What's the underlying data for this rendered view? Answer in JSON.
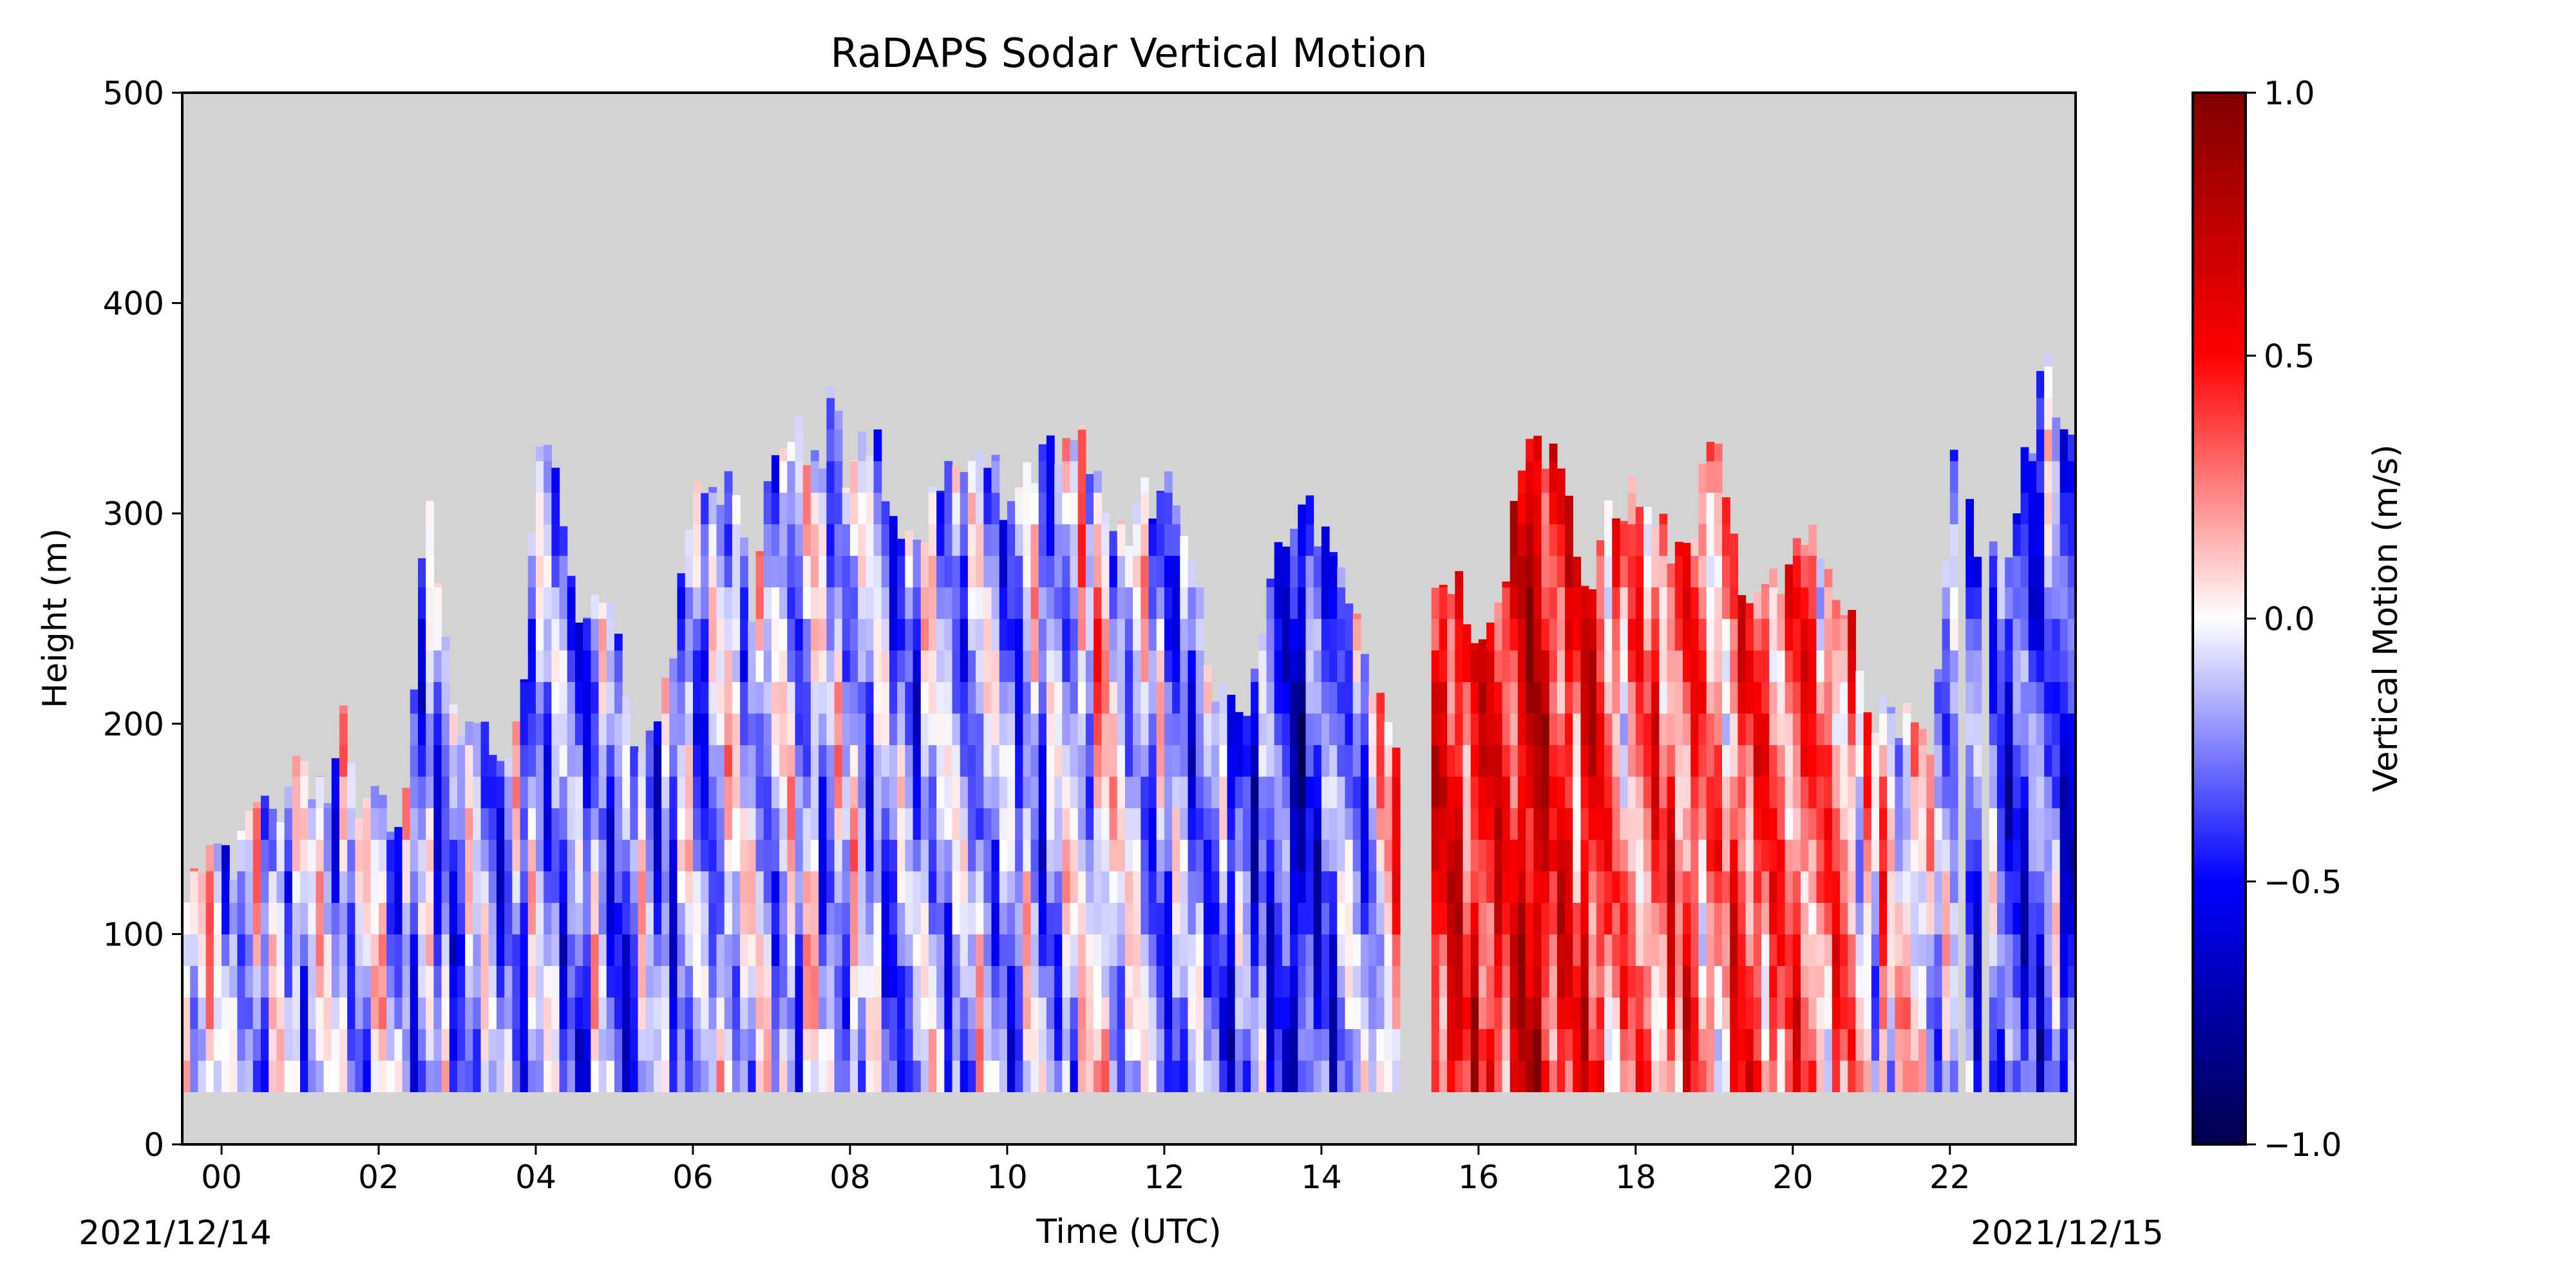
{
  "chart_data": {
    "type": "heatmap",
    "title": "RaDAPS Sodar Vertical Motion",
    "xlabel": "Time (UTC)",
    "ylabel": "Height (m)",
    "start_date_label": "2021/12/14",
    "end_date_label": "2021/12/15",
    "xlim": [
      -0.5,
      23.6
    ],
    "ylim": [
      0,
      500
    ],
    "x_ticks": [
      {
        "value": 0,
        "label": "00"
      },
      {
        "value": 2,
        "label": "02"
      },
      {
        "value": 4,
        "label": "04"
      },
      {
        "value": 6,
        "label": "06"
      },
      {
        "value": 8,
        "label": "08"
      },
      {
        "value": 10,
        "label": "10"
      },
      {
        "value": 12,
        "label": "12"
      },
      {
        "value": 14,
        "label": "14"
      },
      {
        "value": 16,
        "label": "16"
      },
      {
        "value": 18,
        "label": "18"
      },
      {
        "value": 20,
        "label": "20"
      },
      {
        "value": 22,
        "label": "22"
      }
    ],
    "y_ticks": [
      {
        "value": 0,
        "label": "0"
      },
      {
        "value": 100,
        "label": "100"
      },
      {
        "value": 200,
        "label": "200"
      },
      {
        "value": 300,
        "label": "300"
      },
      {
        "value": 400,
        "label": "400"
      },
      {
        "value": 500,
        "label": "500"
      }
    ],
    "colorbar": {
      "label": "Vertical Motion (m/s)",
      "range": [
        -1.0,
        1.0
      ],
      "ticks": [
        {
          "value": 1.0,
          "label": "1.0"
        },
        {
          "value": 0.5,
          "label": "0.5"
        },
        {
          "value": 0.0,
          "label": "0.0"
        },
        {
          "value": -0.5,
          "label": "−0.5"
        },
        {
          "value": -1.0,
          "label": "−1.0"
        }
      ],
      "colormap": [
        "#00004c",
        "#0000ff",
        "#ffffff",
        "#ff0000",
        "#7f0000"
      ]
    },
    "missing_color": "#d3d3d3",
    "min_height": 25,
    "profile_top_height": [
      [
        -0.5,
        130
      ],
      [
        0.2,
        130
      ],
      [
        0.3,
        160
      ],
      [
        0.5,
        175
      ],
      [
        0.8,
        160
      ],
      [
        1.0,
        175
      ],
      [
        1.4,
        175
      ],
      [
        1.5,
        220
      ],
      [
        1.8,
        160
      ],
      [
        2.0,
        160
      ],
      [
        2.2,
        130
      ],
      [
        2.4,
        175
      ],
      [
        2.6,
        310
      ],
      [
        2.8,
        250
      ],
      [
        3.0,
        190
      ],
      [
        3.4,
        190
      ],
      [
        3.8,
        200
      ],
      [
        4.0,
        340
      ],
      [
        4.3,
        325
      ],
      [
        4.5,
        250
      ],
      [
        5.0,
        250
      ],
      [
        5.2,
        205
      ],
      [
        5.5,
        190
      ],
      [
        5.8,
        250
      ],
      [
        6.0,
        325
      ],
      [
        6.3,
        310
      ],
      [
        6.5,
        325
      ],
      [
        6.8,
        250
      ],
      [
        7.0,
        325
      ],
      [
        7.3,
        340
      ],
      [
        7.6,
        325
      ],
      [
        7.8,
        355
      ],
      [
        8.0,
        310
      ],
      [
        8.3,
        340
      ],
      [
        8.5,
        310
      ],
      [
        8.8,
        280
      ],
      [
        9.2,
        310
      ],
      [
        9.6,
        325
      ],
      [
        10.0,
        310
      ],
      [
        10.5,
        325
      ],
      [
        11.0,
        340
      ],
      [
        11.4,
        280
      ],
      [
        11.8,
        310
      ],
      [
        12.2,
        310
      ],
      [
        12.6,
        220
      ],
      [
        13.0,
        190
      ],
      [
        13.4,
        280
      ],
      [
        13.8,
        310
      ],
      [
        14.2,
        265
      ],
      [
        14.6,
        230
      ],
      [
        15.0,
        190
      ],
      [
        15.4,
        280
      ],
      [
        15.8,
        265
      ],
      [
        16.2,
        230
      ],
      [
        16.6,
        340
      ],
      [
        17.0,
        325
      ],
      [
        17.4,
        265
      ],
      [
        17.8,
        310
      ],
      [
        18.2,
        295
      ],
      [
        18.6,
        280
      ],
      [
        19.0,
        340
      ],
      [
        19.4,
        265
      ],
      [
        19.8,
        265
      ],
      [
        20.2,
        295
      ],
      [
        20.6,
        265
      ],
      [
        21.0,
        205
      ],
      [
        21.4,
        205
      ],
      [
        21.8,
        190
      ],
      [
        22.0,
        325
      ],
      [
        22.4,
        280
      ],
      [
        22.8,
        295
      ],
      [
        23.2,
        370
      ],
      [
        23.6,
        330
      ]
    ],
    "data_gaps": [
      [
        15.0,
        15.4
      ],
      [
        22.1,
        22.2
      ],
      [
        22.4,
        22.5
      ]
    ],
    "value_regimes": [
      [
        -0.5,
        -0.08
      ],
      [
        2.0,
        -0.18
      ],
      [
        4.0,
        -0.25
      ],
      [
        6.0,
        -0.22
      ],
      [
        8.0,
        -0.15
      ],
      [
        10.0,
        -0.25
      ],
      [
        11.5,
        0.05
      ],
      [
        12.0,
        -0.25
      ],
      [
        14.0,
        -0.45
      ],
      [
        15.4,
        0.4
      ],
      [
        16.8,
        0.6
      ],
      [
        17.5,
        0.35
      ],
      [
        18.5,
        0.25
      ],
      [
        20.0,
        0.4
      ],
      [
        21.0,
        0.1
      ],
      [
        22.0,
        -0.15
      ],
      [
        23.0,
        -0.35
      ],
      [
        23.6,
        -0.4
      ]
    ]
  }
}
